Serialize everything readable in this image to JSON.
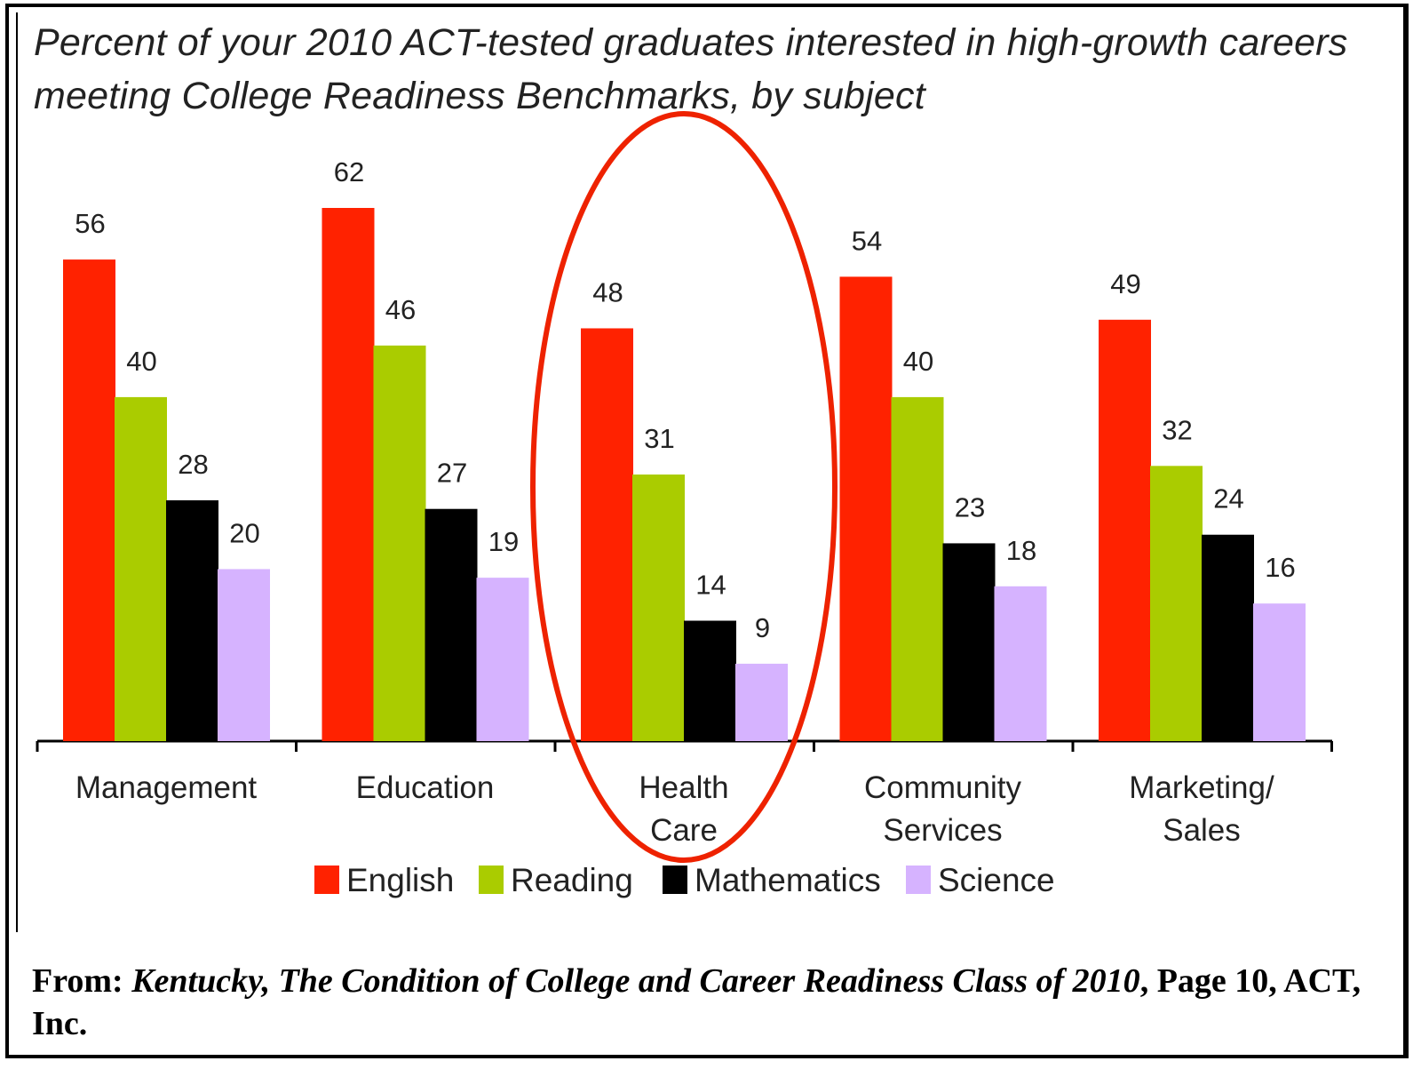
{
  "chart_data": {
    "type": "bar",
    "title": "Percent of your 2010 ACT-tested graduates interested in high-growth careers meeting College Readiness Benchmarks, by subject",
    "categories": [
      [
        "Management"
      ],
      [
        "Education"
      ],
      [
        "Health",
        "Care"
      ],
      [
        "Community",
        "Services"
      ],
      [
        "Marketing/",
        "Sales"
      ]
    ],
    "series": [
      {
        "name": "English",
        "color": "#ff2200",
        "values": [
          56,
          62,
          48,
          54,
          49
        ]
      },
      {
        "name": "Reading",
        "color": "#aacc00",
        "values": [
          40,
          46,
          31,
          40,
          32
        ]
      },
      {
        "name": "Mathematics",
        "color": "#000000",
        "values": [
          28,
          27,
          14,
          23,
          24
        ]
      },
      {
        "name": "Science",
        "color": "#d6b3ff",
        "values": [
          20,
          19,
          9,
          18,
          16
        ]
      }
    ],
    "ylim": [
      0,
      62
    ],
    "xlabel": "",
    "ylabel": "",
    "legend_position": "bottom",
    "grid": false,
    "highlight": {
      "category": "Health Care",
      "shape": "ellipse",
      "color": "#ee2200"
    }
  },
  "source": {
    "prefix": "From: ",
    "publication": "Kentucky, The Condition of College and Career Readiness Class of 2010",
    "suffix": ", Page 10, ACT, Inc."
  }
}
